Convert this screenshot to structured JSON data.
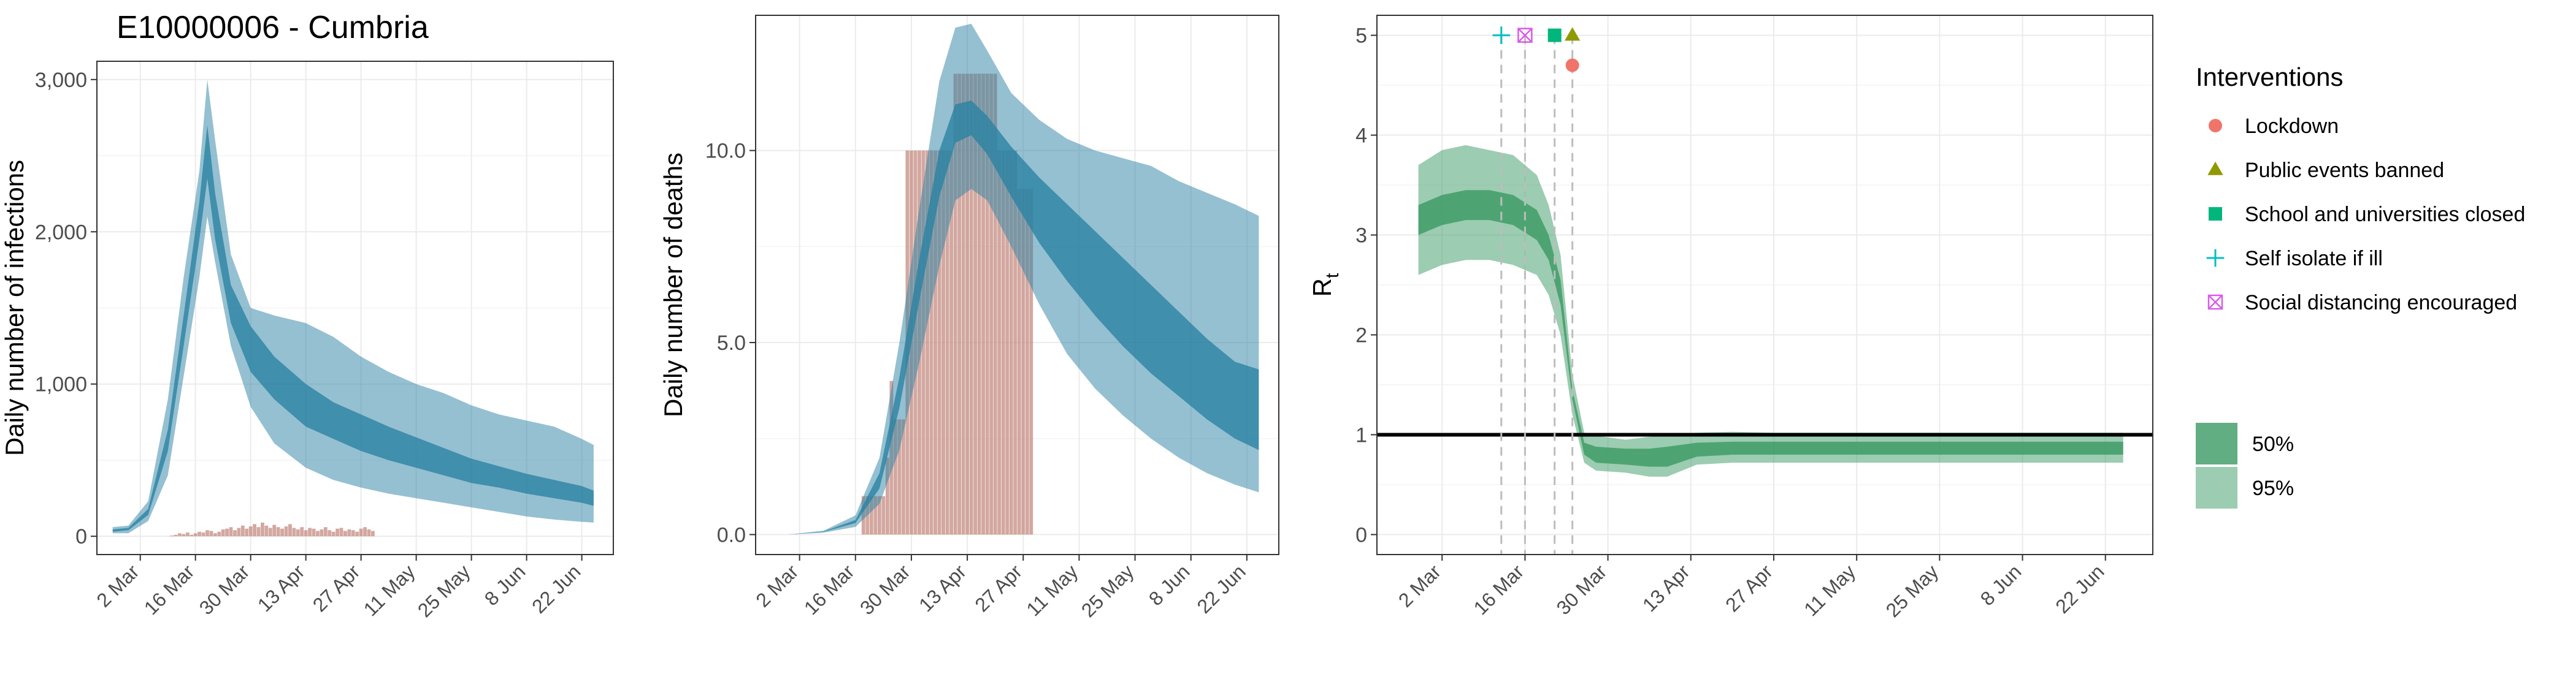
{
  "figure_title": "E10000006 - Cumbria",
  "colors": {
    "model_blue": "#2b82a3",
    "bar_pink": "#c48b82",
    "rt_green": "#3a9a63",
    "panel_border": "#333333",
    "grid": "#ebebeb"
  },
  "chart_data": [
    {
      "type": "area",
      "panel": "infections",
      "ylabel": "Daily number of infections",
      "xlabel": "",
      "xlim": [
        "2020-02-20",
        "2020-06-30"
      ],
      "ylim": [
        0,
        3000
      ],
      "y_ticks": [
        0,
        1000,
        2000,
        3000
      ],
      "y_tick_labels": [
        "0",
        "1,000",
        "2,000",
        "3,000"
      ],
      "x_ticks": [
        "2020-03-02",
        "2020-03-16",
        "2020-03-30",
        "2020-04-13",
        "2020-04-27",
        "2020-05-11",
        "2020-05-25",
        "2020-06-08",
        "2020-06-22"
      ],
      "x_tick_labels": [
        "2 Mar",
        "16 Mar",
        "30 Mar",
        "13 Apr",
        "27 Apr",
        "11 May",
        "25 May",
        "8 Jun",
        "22 Jun"
      ],
      "grid": true,
      "bands": [
        {
          "level": "95%",
          "dates": [
            "2020-02-24",
            "2020-02-28",
            "2020-03-04",
            "2020-03-09",
            "2020-03-13",
            "2020-03-17",
            "2020-03-19",
            "2020-03-21",
            "2020-03-25",
            "2020-03-30",
            "2020-04-05",
            "2020-04-13",
            "2020-04-20",
            "2020-04-27",
            "2020-05-04",
            "2020-05-11",
            "2020-05-18",
            "2020-05-25",
            "2020-06-01",
            "2020-06-08",
            "2020-06-15",
            "2020-06-22",
            "2020-06-25"
          ],
          "lower": [
            20,
            20,
            100,
            400,
            1050,
            1700,
            2100,
            1800,
            1250,
            850,
            610,
            450,
            370,
            320,
            280,
            250,
            220,
            190,
            160,
            130,
            110,
            95,
            90
          ],
          "upper": [
            60,
            70,
            230,
            900,
            1700,
            2400,
            3000,
            2600,
            1850,
            1500,
            1450,
            1400,
            1310,
            1180,
            1080,
            1000,
            940,
            860,
            800,
            760,
            720,
            640,
            600
          ]
        },
        {
          "level": "50%",
          "dates": [
            "2020-02-24",
            "2020-02-28",
            "2020-03-04",
            "2020-03-09",
            "2020-03-13",
            "2020-03-17",
            "2020-03-19",
            "2020-03-21",
            "2020-03-25",
            "2020-03-30",
            "2020-04-05",
            "2020-04-13",
            "2020-04-20",
            "2020-04-27",
            "2020-05-04",
            "2020-05-11",
            "2020-05-18",
            "2020-05-25",
            "2020-06-01",
            "2020-06-08",
            "2020-06-15",
            "2020-06-22",
            "2020-06-25"
          ],
          "lower": [
            30,
            40,
            140,
            560,
            1250,
            1950,
            2350,
            1950,
            1400,
            1080,
            900,
            720,
            640,
            560,
            500,
            450,
            400,
            350,
            320,
            280,
            250,
            220,
            200
          ],
          "upper": [
            45,
            55,
            180,
            700,
            1450,
            2200,
            2700,
            2250,
            1650,
            1380,
            1180,
            1000,
            880,
            800,
            720,
            650,
            580,
            510,
            460,
            410,
            370,
            330,
            300
          ]
        }
      ],
      "bars": {
        "name": "Observed",
        "dates": [
          "2020-03-10",
          "2020-03-11",
          "2020-03-12",
          "2020-03-13",
          "2020-03-14",
          "2020-03-15",
          "2020-03-16",
          "2020-03-17",
          "2020-03-18",
          "2020-03-19",
          "2020-03-20",
          "2020-03-21",
          "2020-03-22",
          "2020-03-23",
          "2020-03-24",
          "2020-03-25",
          "2020-03-26",
          "2020-03-27",
          "2020-03-28",
          "2020-03-29",
          "2020-03-30",
          "2020-03-31",
          "2020-04-01",
          "2020-04-02",
          "2020-04-03",
          "2020-04-04",
          "2020-04-05",
          "2020-04-06",
          "2020-04-07",
          "2020-04-08",
          "2020-04-09",
          "2020-04-10",
          "2020-04-11",
          "2020-04-12",
          "2020-04-13",
          "2020-04-14",
          "2020-04-15",
          "2020-04-16",
          "2020-04-17",
          "2020-04-18",
          "2020-04-19",
          "2020-04-20",
          "2020-04-21",
          "2020-04-22",
          "2020-04-23",
          "2020-04-24",
          "2020-04-25",
          "2020-04-26",
          "2020-04-27",
          "2020-04-28",
          "2020-04-29",
          "2020-04-30"
        ],
        "values": [
          5,
          10,
          20,
          15,
          25,
          10,
          20,
          30,
          25,
          40,
          35,
          20,
          30,
          45,
          50,
          60,
          40,
          55,
          70,
          50,
          65,
          80,
          60,
          90,
          70,
          55,
          75,
          60,
          50,
          65,
          80,
          55,
          45,
          60,
          40,
          55,
          50,
          35,
          45,
          60,
          40,
          30,
          50,
          55,
          35,
          45,
          40,
          30,
          50,
          60,
          45,
          35
        ]
      }
    },
    {
      "type": "area",
      "panel": "deaths",
      "ylabel": "Daily number of deaths",
      "xlabel": "",
      "xlim": [
        "2020-02-20",
        "2020-06-30"
      ],
      "ylim": [
        0,
        13
      ],
      "y_ticks": [
        0,
        5,
        10
      ],
      "y_tick_labels": [
        "0.0",
        "5.0",
        "10.0"
      ],
      "x_ticks": [
        "2020-03-02",
        "2020-03-16",
        "2020-03-30",
        "2020-04-13",
        "2020-04-27",
        "2020-05-11",
        "2020-05-25",
        "2020-06-08",
        "2020-06-22"
      ],
      "x_tick_labels": [
        "2 Mar",
        "16 Mar",
        "30 Mar",
        "13 Apr",
        "27 Apr",
        "11 May",
        "25 May",
        "8 Jun",
        "22 Jun"
      ],
      "grid": true,
      "bands": [
        {
          "level": "95%",
          "dates": [
            "2020-02-28",
            "2020-03-08",
            "2020-03-16",
            "2020-03-22",
            "2020-03-27",
            "2020-04-01",
            "2020-04-06",
            "2020-04-10",
            "2020-04-14",
            "2020-04-18",
            "2020-04-24",
            "2020-05-01",
            "2020-05-08",
            "2020-05-15",
            "2020-05-22",
            "2020-05-29",
            "2020-06-05",
            "2020-06-12",
            "2020-06-19",
            "2020-06-25"
          ],
          "lower": [
            0,
            0.05,
            0.2,
            0.8,
            2.2,
            4.5,
            7.0,
            8.7,
            9.0,
            8.7,
            7.5,
            6.0,
            4.7,
            3.8,
            3.1,
            2.5,
            2.0,
            1.6,
            1.3,
            1.1
          ],
          "upper": [
            0,
            0.1,
            0.5,
            2.0,
            5.0,
            8.5,
            11.8,
            13.2,
            13.3,
            12.6,
            11.5,
            10.8,
            10.3,
            10.0,
            9.8,
            9.6,
            9.2,
            8.9,
            8.6,
            8.3
          ]
        },
        {
          "level": "50%",
          "dates": [
            "2020-02-28",
            "2020-03-08",
            "2020-03-16",
            "2020-03-22",
            "2020-03-27",
            "2020-04-01",
            "2020-04-06",
            "2020-04-10",
            "2020-04-14",
            "2020-04-18",
            "2020-04-24",
            "2020-05-01",
            "2020-05-08",
            "2020-05-15",
            "2020-05-22",
            "2020-05-29",
            "2020-06-05",
            "2020-06-12",
            "2020-06-19",
            "2020-06-25"
          ],
          "lower": [
            0,
            0.07,
            0.3,
            1.2,
            3.3,
            6.1,
            8.8,
            10.2,
            10.4,
            9.9,
            8.8,
            7.6,
            6.6,
            5.7,
            4.9,
            4.2,
            3.6,
            3.0,
            2.5,
            2.2
          ],
          "upper": [
            0,
            0.08,
            0.38,
            1.6,
            4.1,
            7.2,
            10.0,
            11.2,
            11.3,
            10.9,
            10.1,
            9.3,
            8.6,
            7.9,
            7.2,
            6.5,
            5.8,
            5.1,
            4.5,
            4.3
          ]
        }
      ],
      "bars": {
        "name": "Observed",
        "dates": [
          "2020-03-18",
          "2020-03-19",
          "2020-03-20",
          "2020-03-21",
          "2020-03-22",
          "2020-03-23",
          "2020-03-24",
          "2020-03-25",
          "2020-03-26",
          "2020-03-27",
          "2020-03-28",
          "2020-03-29",
          "2020-03-30",
          "2020-03-31",
          "2020-04-01",
          "2020-04-02",
          "2020-04-03",
          "2020-04-04",
          "2020-04-05",
          "2020-04-06",
          "2020-04-07",
          "2020-04-08",
          "2020-04-09",
          "2020-04-10",
          "2020-04-11",
          "2020-04-12",
          "2020-04-13",
          "2020-04-14",
          "2020-04-15",
          "2020-04-16",
          "2020-04-17",
          "2020-04-18",
          "2020-04-19",
          "2020-04-20",
          "2020-04-21",
          "2020-04-22",
          "2020-04-23",
          "2020-04-24",
          "2020-04-25",
          "2020-04-26",
          "2020-04-27",
          "2020-04-28",
          "2020-04-29"
        ],
        "values": [
          1,
          1,
          1,
          1,
          1,
          1,
          2,
          4,
          3,
          3,
          3,
          10,
          10,
          10,
          10,
          10,
          10,
          10,
          10,
          10,
          10,
          10,
          10,
          12,
          12,
          12,
          12,
          12,
          12,
          12,
          12,
          12,
          12,
          12,
          10,
          10,
          10,
          10,
          10,
          9,
          9,
          9,
          9
        ]
      }
    },
    {
      "type": "area",
      "panel": "rt",
      "ylabel": "R",
      "ylabel_subscript": "t",
      "xlabel": "",
      "xlim": [
        "2020-02-20",
        "2020-06-30"
      ],
      "ylim": [
        0,
        5
      ],
      "y_ticks": [
        0,
        1,
        2,
        3,
        4,
        5
      ],
      "y_tick_labels": [
        "0",
        "1",
        "2",
        "3",
        "4",
        "5"
      ],
      "x_ticks": [
        "2020-03-02",
        "2020-03-16",
        "2020-03-30",
        "2020-04-13",
        "2020-04-27",
        "2020-05-11",
        "2020-05-25",
        "2020-06-08",
        "2020-06-22"
      ],
      "x_tick_labels": [
        "2 Mar",
        "16 Mar",
        "30 Mar",
        "13 Apr",
        "27 Apr",
        "11 May",
        "25 May",
        "8 Jun",
        "22 Jun"
      ],
      "grid": true,
      "reference_line": 1,
      "bands": [
        {
          "level": "95%",
          "dates": [
            "2020-02-27",
            "2020-03-02",
            "2020-03-06",
            "2020-03-10",
            "2020-03-14",
            "2020-03-18",
            "2020-03-20",
            "2020-03-22",
            "2020-03-24",
            "2020-03-26",
            "2020-03-28",
            "2020-04-02",
            "2020-04-06",
            "2020-04-09",
            "2020-04-14",
            "2020-04-20",
            "2020-04-27",
            "2020-05-04",
            "2020-05-11",
            "2020-05-18",
            "2020-05-25",
            "2020-06-01",
            "2020-06-08",
            "2020-06-15",
            "2020-06-22",
            "2020-06-25"
          ],
          "lower": [
            2.6,
            2.7,
            2.75,
            2.75,
            2.7,
            2.6,
            2.4,
            2.0,
            1.2,
            0.72,
            0.64,
            0.62,
            0.58,
            0.58,
            0.7,
            0.72,
            0.72,
            0.72,
            0.72,
            0.72,
            0.72,
            0.72,
            0.72,
            0.72,
            0.72,
            0.72
          ],
          "upper": [
            3.7,
            3.85,
            3.9,
            3.85,
            3.8,
            3.6,
            3.3,
            2.8,
            1.6,
            1.02,
            0.99,
            0.95,
            0.98,
            1.0,
            1.02,
            1.03,
            1.02,
            1.02,
            1.02,
            1.02,
            1.02,
            1.02,
            1.02,
            1.02,
            1.02,
            1.02
          ]
        },
        {
          "level": "50%",
          "dates": [
            "2020-02-27",
            "2020-03-02",
            "2020-03-06",
            "2020-03-10",
            "2020-03-14",
            "2020-03-18",
            "2020-03-20",
            "2020-03-22",
            "2020-03-24",
            "2020-03-26",
            "2020-03-28",
            "2020-04-02",
            "2020-04-06",
            "2020-04-09",
            "2020-04-14",
            "2020-04-20",
            "2020-04-27",
            "2020-05-04",
            "2020-05-11",
            "2020-05-18",
            "2020-05-25",
            "2020-06-01",
            "2020-06-08",
            "2020-06-15",
            "2020-06-22",
            "2020-06-25"
          ],
          "lower": [
            3.0,
            3.1,
            3.15,
            3.15,
            3.1,
            2.95,
            2.75,
            2.3,
            1.35,
            0.8,
            0.72,
            0.7,
            0.68,
            0.68,
            0.78,
            0.8,
            0.8,
            0.8,
            0.8,
            0.8,
            0.8,
            0.8,
            0.8,
            0.8,
            0.8,
            0.8
          ],
          "upper": [
            3.3,
            3.4,
            3.45,
            3.45,
            3.4,
            3.25,
            3.0,
            2.55,
            1.45,
            0.92,
            0.88,
            0.86,
            0.86,
            0.88,
            0.92,
            0.93,
            0.93,
            0.93,
            0.93,
            0.93,
            0.93,
            0.93,
            0.93,
            0.93,
            0.93,
            0.93
          ]
        }
      ],
      "interventions": [
        {
          "name": "Self isolate if ill",
          "date": "2020-03-12",
          "y": 5,
          "shape": "plus",
          "color": "#00bfc4"
        },
        {
          "name": "Social distancing encouraged",
          "date": "2020-03-16",
          "y": 5,
          "shape": "boxx",
          "color": "#d85be8"
        },
        {
          "name": "School and universities closed",
          "date": "2020-03-21",
          "y": 5,
          "shape": "square",
          "color": "#00b67a"
        },
        {
          "name": "Public events banned",
          "date": "2020-03-24",
          "y": 5,
          "shape": "triangle",
          "color": "#8f9a00"
        },
        {
          "name": "Lockdown",
          "date": "2020-03-24",
          "y": 4.7,
          "shape": "circle",
          "color": "#f0746a"
        }
      ]
    }
  ],
  "legend": {
    "title": "Interventions",
    "items": [
      {
        "label": "Lockdown",
        "shape": "circle",
        "color": "#f0746a"
      },
      {
        "label": "Public events banned",
        "shape": "triangle",
        "color": "#8f9a00"
      },
      {
        "label": "School and universities closed",
        "shape": "square",
        "color": "#00b67a"
      },
      {
        "label": "Self isolate if ill",
        "shape": "plus",
        "color": "#00bfc4"
      },
      {
        "label": "Social distancing encouraged",
        "shape": "boxx",
        "color": "#d85be8"
      }
    ],
    "bands": [
      {
        "label": "50%",
        "color": "#3a9a63",
        "opacity": 0.8
      },
      {
        "label": "95%",
        "color": "#3a9a63",
        "opacity": 0.5
      }
    ]
  }
}
